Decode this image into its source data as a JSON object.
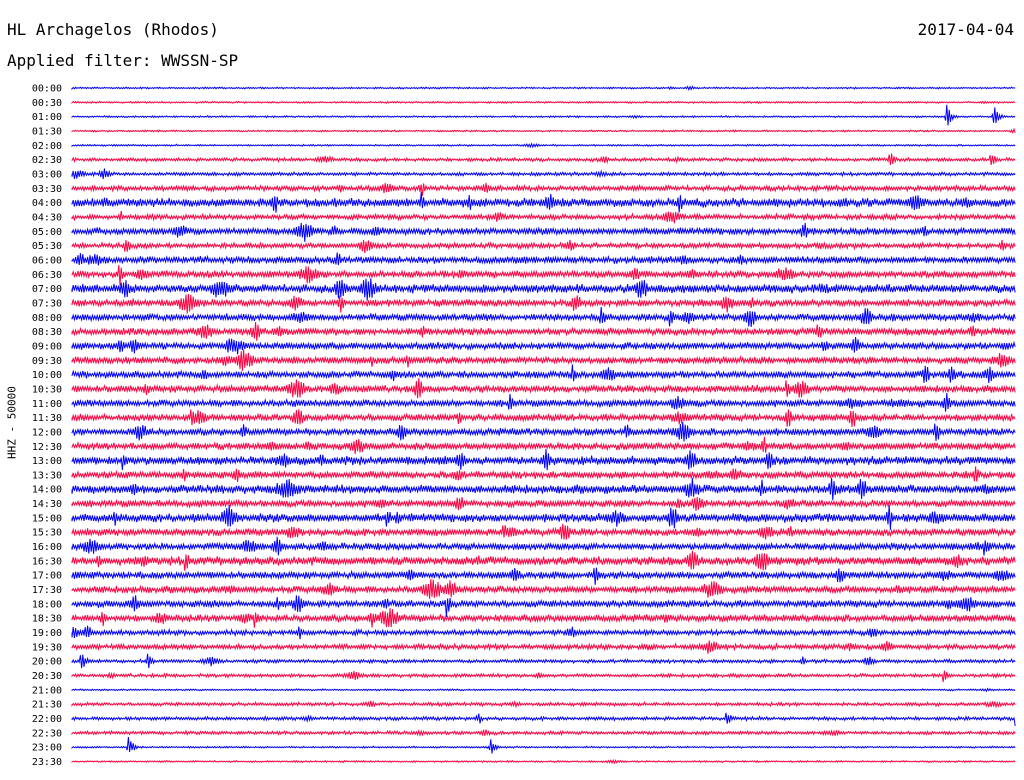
{
  "header": {
    "station": "HL Archagelos (Rhodos)",
    "filter": "Applied filter: WWSSN-SP",
    "date": "2017-04-04"
  },
  "chart_data": {
    "type": "line",
    "title": "HL Archagelos (Rhodos)",
    "ylabel": "HHZ - 50000",
    "colors": {
      "odd_trace": "#0000ff",
      "even_trace": "#ff0040"
    },
    "row_times": [
      "00:00",
      "00:30",
      "01:00",
      "01:30",
      "02:00",
      "02:30",
      "03:00",
      "03:30",
      "04:00",
      "04:30",
      "05:00",
      "05:30",
      "06:00",
      "06:30",
      "07:00",
      "07:30",
      "08:00",
      "08:30",
      "09:00",
      "09:30",
      "10:00",
      "10:30",
      "11:00",
      "11:30",
      "12:00",
      "12:30",
      "13:00",
      "13:30",
      "14:00",
      "14:30",
      "15:00",
      "15:30",
      "16:00",
      "16:30",
      "17:00",
      "17:30",
      "18:00",
      "18:30",
      "19:00",
      "19:30",
      "20:00",
      "20:30",
      "21:00",
      "21:30",
      "22:00",
      "22:30",
      "23:00",
      "23:30"
    ],
    "trace_amplitude": [
      1,
      1,
      1,
      1,
      1,
      2,
      2,
      3,
      5,
      3,
      4,
      3,
      4,
      4,
      5,
      4,
      4,
      4,
      4,
      4,
      4,
      4,
      4,
      4,
      4,
      4,
      5,
      4,
      5,
      4,
      5,
      4,
      4,
      5,
      4,
      4,
      4,
      4,
      3,
      3,
      2,
      2,
      1,
      2,
      2,
      2,
      1,
      1
    ],
    "events": [
      {
        "row": "00:00",
        "minute": 19.0,
        "amp": 2
      },
      {
        "row": "01:00",
        "minute": 27.8,
        "amp": 14
      },
      {
        "row": "01:00",
        "minute": 29.3,
        "amp": 14
      },
      {
        "row": "02:30",
        "minute": 26.0,
        "amp": 10
      },
      {
        "row": "02:30",
        "minute": 29.2,
        "amp": 10
      },
      {
        "row": "04:00",
        "minute": 11.1,
        "amp": 14
      },
      {
        "row": "04:00",
        "minute": 12.6,
        "amp": 12
      },
      {
        "row": "05:30",
        "minute": 1.7,
        "amp": 12
      },
      {
        "row": "06:30",
        "minute": 1.5,
        "amp": 14
      },
      {
        "row": "07:30",
        "minute": 8.5,
        "amp": 14
      },
      {
        "row": "08:00",
        "minute": 16.8,
        "amp": 14
      },
      {
        "row": "08:00",
        "minute": 19.0,
        "amp": 14
      },
      {
        "row": "10:00",
        "minute": 15.9,
        "amp": 12
      },
      {
        "row": "10:30",
        "minute": 22.7,
        "amp": 14
      },
      {
        "row": "11:00",
        "minute": 13.9,
        "amp": 12
      },
      {
        "row": "11:30",
        "minute": 3.8,
        "amp": 14
      },
      {
        "row": "12:00",
        "minute": 17.6,
        "amp": 12
      },
      {
        "row": "13:00",
        "minute": 1.6,
        "amp": 14
      },
      {
        "row": "14:00",
        "minute": 21.9,
        "amp": 12
      },
      {
        "row": "15:00",
        "minute": 10.0,
        "amp": 14
      },
      {
        "row": "15:30",
        "minute": 13.7,
        "amp": 12
      },
      {
        "row": "16:00",
        "minute": 29.0,
        "amp": 14
      },
      {
        "row": "16:30",
        "minute": 3.6,
        "amp": 14
      },
      {
        "row": "17:00",
        "minute": 16.6,
        "amp": 14
      },
      {
        "row": "18:00",
        "minute": 11.9,
        "amp": 14
      },
      {
        "row": "18:30",
        "minute": 5.8,
        "amp": 14
      },
      {
        "row": "19:00",
        "minute": 7.2,
        "amp": 10
      },
      {
        "row": "20:00",
        "minute": 0.3,
        "amp": 14
      },
      {
        "row": "20:00",
        "minute": 2.4,
        "amp": 10
      },
      {
        "row": "20:30",
        "minute": 27.7,
        "amp": 10
      },
      {
        "row": "22:00",
        "minute": 20.8,
        "amp": 10
      },
      {
        "row": "22:00",
        "minute": 30.0,
        "amp": 14
      },
      {
        "row": "23:00",
        "minute": 1.8,
        "amp": 12
      },
      {
        "row": "23:00",
        "minute": 13.3,
        "amp": 10
      }
    ],
    "grid": false,
    "legend": "none"
  }
}
